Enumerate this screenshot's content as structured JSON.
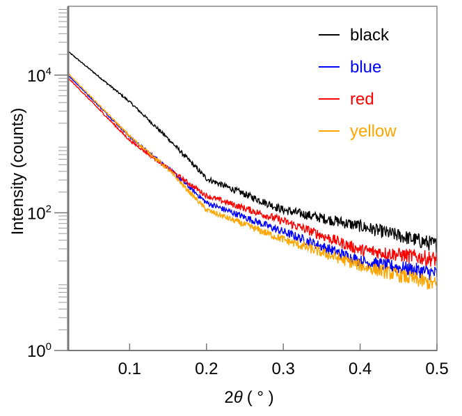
{
  "chart_data": {
    "type": "line",
    "title": "",
    "xlabel": "2θ (°)",
    "xlabel_parts": {
      "prefix": "2",
      "symbol": "θ",
      "unit": "( ° )"
    },
    "ylabel": "Intensity (counts)",
    "xlim": [
      0.02,
      0.5
    ],
    "ylim": [
      1,
      100000
    ],
    "yscale": "log",
    "grid": false,
    "legend_position": "top-right",
    "x_ticks": [
      "0.1",
      "0.2",
      "0.3",
      "0.4",
      "0.5"
    ],
    "x_tick_values": [
      0.1,
      0.2,
      0.3,
      0.4,
      0.5
    ],
    "y_ticks": [
      {
        "base": "10",
        "exp": "0",
        "value": 1
      },
      {
        "base": "10",
        "exp": "2",
        "value": 100
      },
      {
        "base": "10",
        "exp": "4",
        "value": 10000
      }
    ],
    "x": [
      0.02,
      0.1,
      0.15,
      0.2,
      0.3,
      0.4,
      0.5
    ],
    "series": [
      {
        "name": "black",
        "color": "#000000",
        "values": [
          22000,
          4100,
          1200,
          315,
          110,
          64,
          34
        ]
      },
      {
        "name": "blue",
        "color": "#0000ff",
        "values": [
          10000,
          1270,
          450,
          140,
          53,
          20,
          13
        ]
      },
      {
        "name": "red",
        "color": "#ff0000",
        "values": [
          9100,
          1130,
          440,
          177,
          76,
          29,
          21
        ]
      },
      {
        "name": "yellow",
        "color": "#ffa500",
        "values": [
          10500,
          1300,
          430,
          110,
          41,
          17,
          9
        ]
      }
    ]
  }
}
